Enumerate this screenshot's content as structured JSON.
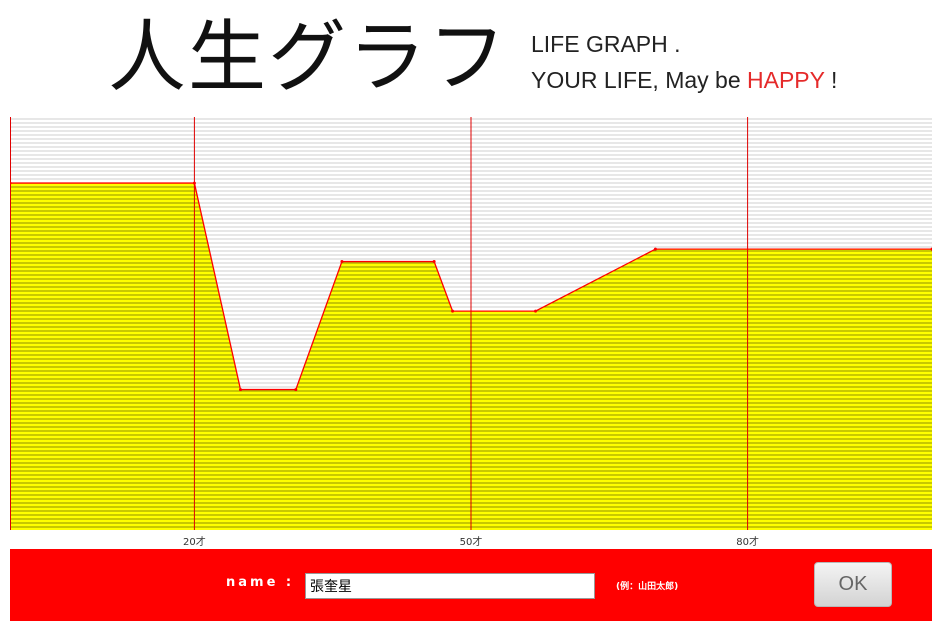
{
  "header": {
    "title": "人生グラフ",
    "tagline_line1": "LIFE GRAPH .",
    "tagline_line2_prefix": "YOUR LIFE, May be ",
    "tagline_happy": "HAPPY",
    "tagline_line2_suffix": " !"
  },
  "colors": {
    "fill": "#ffff00",
    "curve": "#ff0000",
    "age_markers": "#e00000",
    "bar": "#ff0000",
    "happy_text": "#e52a2a"
  },
  "chart_data": {
    "type": "area",
    "x_axis_labels": [
      "20才",
      "50才",
      "80才"
    ],
    "x_axis_label_ages": [
      20,
      50,
      80
    ],
    "xlim": [
      0,
      100
    ],
    "ylim": [
      0,
      100
    ],
    "grid": "horizontal",
    "series": [
      {
        "x": [
          0,
          20,
          25,
          31,
          36,
          46,
          48,
          57,
          70,
          100
        ],
        "y": [
          84,
          84,
          34,
          34,
          65,
          65,
          53,
          53,
          68,
          68
        ]
      }
    ]
  },
  "form": {
    "name_label": "name :",
    "name_value": "張奎星",
    "example_hint": "(例：山田太郎)",
    "ok_label": "OK"
  }
}
